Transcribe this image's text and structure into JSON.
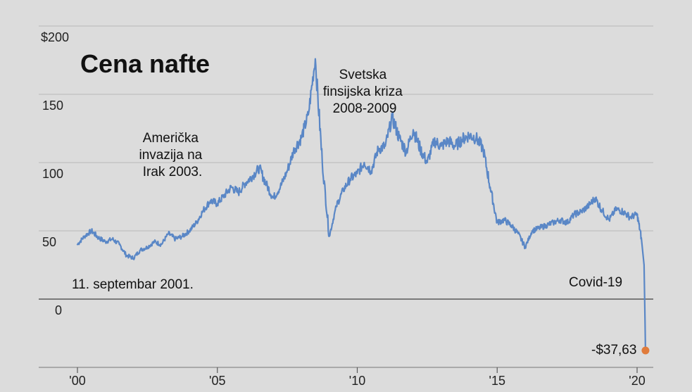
{
  "chart_data": {
    "type": "line",
    "title": "Cena nafte",
    "xlabel": "",
    "ylabel": "",
    "xlim": [
      2000,
      2020.6
    ],
    "ylim": [
      -50,
      200
    ],
    "y_ticks": [
      {
        "value": 200,
        "label": "$200"
      },
      {
        "value": 150,
        "label": "150"
      },
      {
        "value": 100,
        "label": "100"
      },
      {
        "value": 50,
        "label": "50"
      },
      {
        "value": 0,
        "label": "0"
      }
    ],
    "x_ticks": [
      {
        "value": 2000,
        "label": "'00"
      },
      {
        "value": 2005,
        "label": "'05"
      },
      {
        "value": 2010,
        "label": "'10"
      },
      {
        "value": 2015,
        "label": "'15"
      },
      {
        "value": 2020,
        "label": "'20"
      }
    ],
    "grid": true,
    "colors": {
      "line": "#5a87c6",
      "marker": "#e07b3b"
    },
    "series": [
      {
        "x": [
          2000.0,
          2000.25,
          2000.5,
          2000.75,
          2001.0,
          2001.25,
          2001.5,
          2001.75,
          2002.0,
          2002.25,
          2002.5,
          2002.75,
          2003.0,
          2003.25,
          2003.5,
          2003.75,
          2004.0,
          2004.25,
          2004.5,
          2004.75,
          2005.0,
          2005.25,
          2005.5,
          2005.75,
          2006.0,
          2006.25,
          2006.5,
          2006.75,
          2007.0,
          2007.25,
          2007.5,
          2007.75,
          2008.0,
          2008.25,
          2008.5,
          2008.75,
          2009.0,
          2009.25,
          2009.5,
          2009.75,
          2010.0,
          2010.25,
          2010.5,
          2010.75,
          2011.0,
          2011.25,
          2011.5,
          2011.75,
          2012.0,
          2012.25,
          2012.5,
          2012.75,
          2013.0,
          2013.25,
          2013.5,
          2013.75,
          2014.0,
          2014.25,
          2014.5,
          2014.75,
          2015.0,
          2015.25,
          2015.5,
          2015.75,
          2016.0,
          2016.25,
          2016.5,
          2016.75,
          2017.0,
          2017.25,
          2017.5,
          2017.75,
          2018.0,
          2018.25,
          2018.5,
          2018.75,
          2019.0,
          2019.25,
          2019.5,
          2019.75,
          2020.0,
          2020.15,
          2020.25,
          2020.3
        ],
        "values": [
          40,
          46,
          50,
          45,
          42,
          44,
          40,
          32,
          30,
          36,
          38,
          42,
          40,
          48,
          44,
          46,
          50,
          56,
          65,
          72,
          70,
          76,
          82,
          78,
          85,
          90,
          96,
          84,
          74,
          82,
          94,
          110,
          118,
          135,
          176,
          100,
          46,
          68,
          80,
          88,
          92,
          100,
          94,
          110,
          112,
          133,
          118,
          108,
          124,
          110,
          100,
          116,
          112,
          116,
          112,
          117,
          120,
          118,
          110,
          82,
          56,
          58,
          54,
          48,
          38,
          50,
          52,
          54,
          56,
          58,
          56,
          62,
          64,
          68,
          74,
          65,
          58,
          66,
          64,
          60,
          62,
          45,
          25,
          -37.63
        ]
      }
    ],
    "annotations": [
      {
        "text": "Američka invazija na Irak 2003.",
        "lines": [
          "Američka",
          "invazija na",
          "Irak 2003."
        ]
      },
      {
        "text": "Svetska finsijska kriza 2008-2009",
        "lines": [
          "Svetska",
          "finsijska kriza",
          "2008-2009"
        ]
      },
      {
        "text": "11. septembar 2001.",
        "lines": [
          "11. septembar 2001."
        ]
      },
      {
        "text": "Covid-19",
        "lines": [
          "Covid-19"
        ]
      },
      {
        "text": "-$37,63",
        "lines": [
          "-$37,63"
        ]
      }
    ]
  }
}
